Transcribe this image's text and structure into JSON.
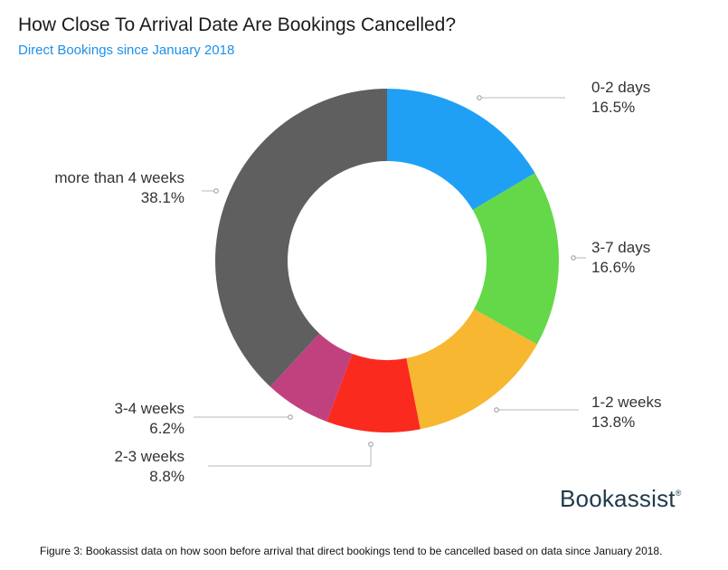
{
  "brand": {
    "name": "Bookassist",
    "mark": "®"
  },
  "caption": "Figure 3: Bookassist data on how soon before arrival that direct bookings tend to be cancelled based on data since January 2018.",
  "chart_data": {
    "type": "pie",
    "donut": true,
    "title": "How Close To Arrival Date Are Bookings Cancelled?",
    "subtitle": "Direct Bookings since January 2018",
    "categories": [
      "0-2 days",
      "3-7 days",
      "1-2 weeks",
      "2-3 weeks",
      "3-4 weeks",
      "more than 4 weeks"
    ],
    "values": [
      16.5,
      16.6,
      13.8,
      8.8,
      6.2,
      38.1
    ],
    "value_labels": [
      "16.5%",
      "16.6%",
      "13.8%",
      "8.8%",
      "6.2%",
      "38.1%"
    ],
    "colors": [
      "#1fa0f5",
      "#65d84a",
      "#f7b731",
      "#fa2a1e",
      "#c1417f",
      "#5f5f5f"
    ],
    "units": "%"
  }
}
